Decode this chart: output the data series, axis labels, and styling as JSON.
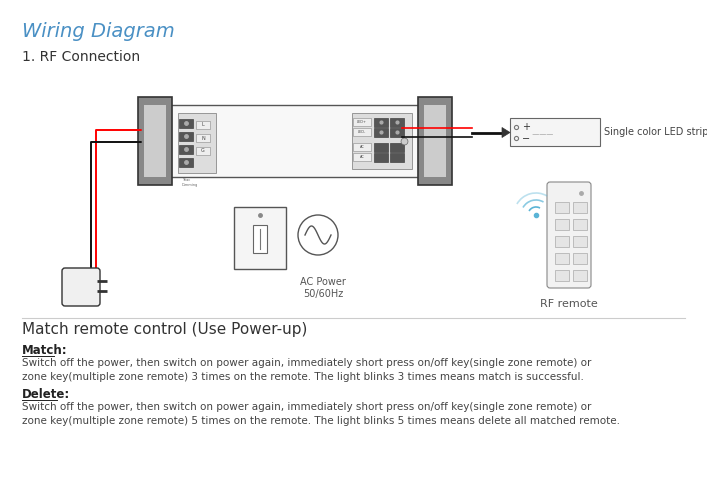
{
  "title": "Wiring Diagram",
  "title_color": "#4a90c4",
  "subtitle": "1. RF Connection",
  "subtitle_color": "#333333",
  "bg_color": "#ffffff",
  "section_title": "Match remote control (Use Power-up)",
  "match_label": "Match:",
  "match_text": "Switch off the power, then switch on power again, immediately short press on/off key(single zone remote) or\nzone key(multiple zone remote) 3 times on the remote. The light blinks 3 times means match is successful.",
  "delete_label": "Delete:",
  "delete_text": "Switch off the power, then switch on power again, immediately short press on/off key(single zone remote) or\nzone key(multiple zone remote) 5 times on the remote. The light blinks 5 times means delete all matched remote.",
  "ac_power_label": "AC Power\n50/60Hz",
  "rf_remote_label": "RF remote",
  "led_strip_label": "Single color LED strip"
}
